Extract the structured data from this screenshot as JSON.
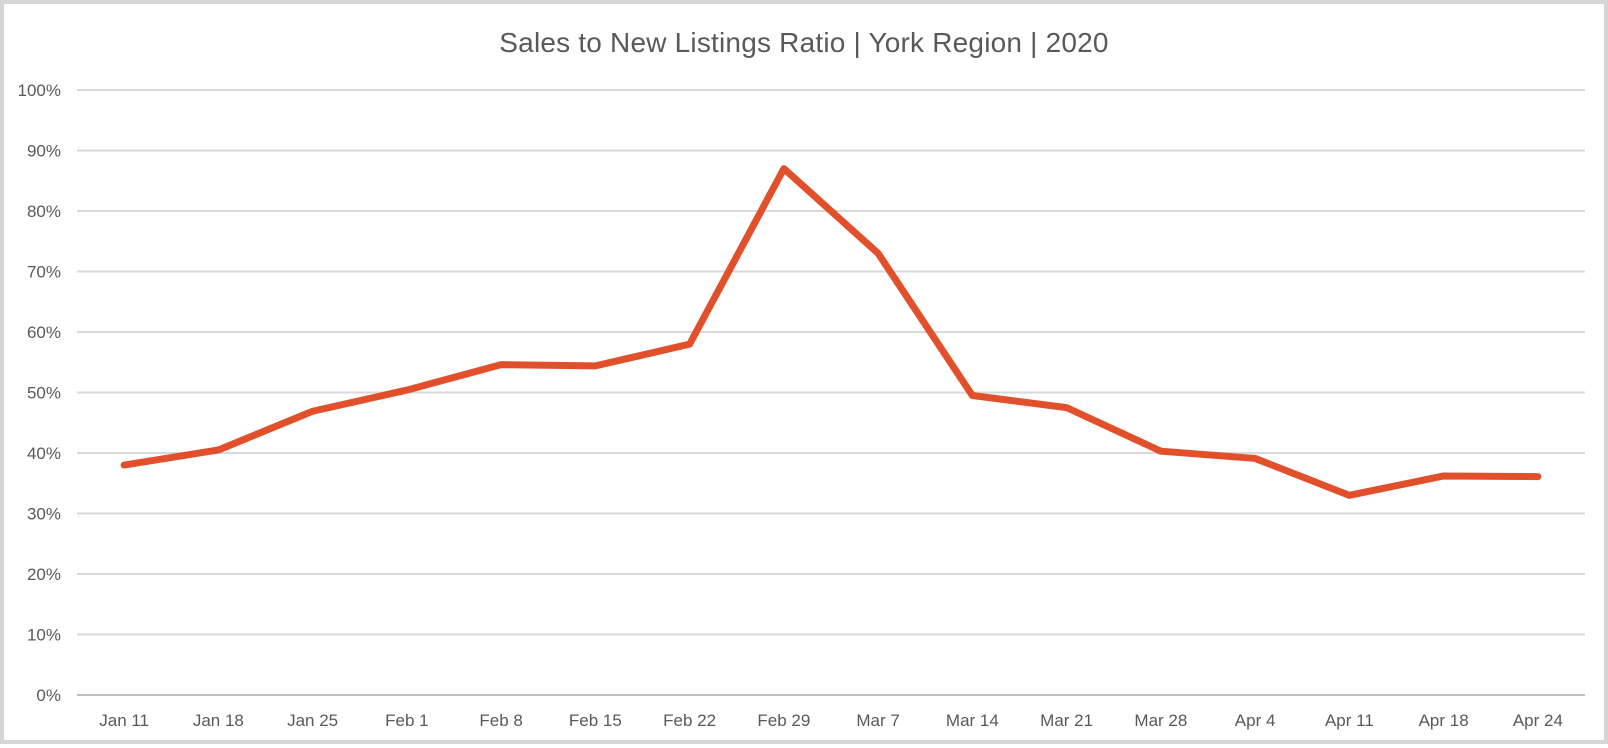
{
  "window": {
    "background": "#FFFFFF",
    "border_color": "#D6D6D6"
  },
  "chart_data": {
    "type": "line",
    "title": "Sales to New Listings Ratio | York Region | 2020",
    "categories": [
      "Jan 11",
      "Jan 18",
      "Jan 25",
      "Feb 1",
      "Feb 8",
      "Feb 15",
      "Feb 22",
      "Feb 29",
      "Mar 7",
      "Mar 14",
      "Mar 21",
      "Mar 28",
      "Apr 4",
      "Apr 11",
      "Apr 18",
      "Apr 24"
    ],
    "values": [
      38.0,
      40.5,
      46.9,
      50.4,
      54.6,
      54.4,
      58.0,
      87.0,
      73.0,
      49.5,
      47.5,
      40.3,
      39.1,
      33.0,
      36.2,
      36.1
    ],
    "xlabel": "",
    "ylabel": "",
    "ylim": [
      0,
      100
    ],
    "ytick_step": 10,
    "ytick_labels": [
      "0%",
      "10%",
      "20%",
      "30%",
      "40%",
      "50%",
      "60%",
      "70%",
      "80%",
      "90%",
      "100%"
    ],
    "grid": true,
    "legend": "none",
    "line_color": "#E2502B",
    "line_width": 7,
    "gridline_color": "#D9D9D9",
    "axis_line_color": "#BFBFBF",
    "text_color": "#595959"
  }
}
